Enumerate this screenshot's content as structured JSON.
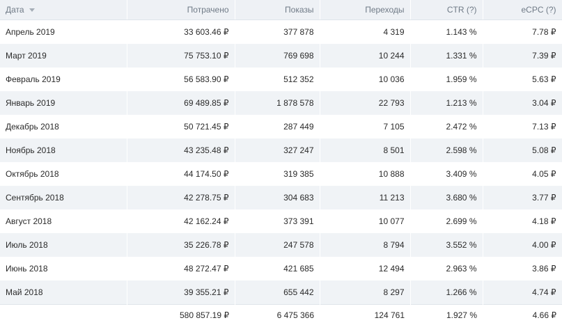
{
  "columns": {
    "date": "Дата",
    "spent": "Потрачено",
    "shows": "Показы",
    "clicks": "Переходы",
    "ctr": "CTR (?)",
    "ecpc": "eCPC (?)"
  },
  "rows": [
    {
      "date": "Апрель 2019",
      "spent": "33 603.46 ₽",
      "shows": "377 878",
      "clicks": "4 319",
      "ctr": "1.143 %",
      "ecpc": "7.78 ₽"
    },
    {
      "date": "Март 2019",
      "spent": "75 753.10 ₽",
      "shows": "769 698",
      "clicks": "10 244",
      "ctr": "1.331 %",
      "ecpc": "7.39 ₽"
    },
    {
      "date": "Февраль 2019",
      "spent": "56 583.90 ₽",
      "shows": "512 352",
      "clicks": "10 036",
      "ctr": "1.959 %",
      "ecpc": "5.63 ₽"
    },
    {
      "date": "Январь 2019",
      "spent": "69 489.85 ₽",
      "shows": "1 878 578",
      "clicks": "22 793",
      "ctr": "1.213 %",
      "ecpc": "3.04 ₽"
    },
    {
      "date": "Декабрь 2018",
      "spent": "50 721.45 ₽",
      "shows": "287 449",
      "clicks": "7 105",
      "ctr": "2.472 %",
      "ecpc": "7.13 ₽"
    },
    {
      "date": "Ноябрь 2018",
      "spent": "43 235.48 ₽",
      "shows": "327 247",
      "clicks": "8 501",
      "ctr": "2.598 %",
      "ecpc": "5.08 ₽"
    },
    {
      "date": "Октябрь 2018",
      "spent": "44 174.50 ₽",
      "shows": "319 385",
      "clicks": "10 888",
      "ctr": "3.409 %",
      "ecpc": "4.05 ₽"
    },
    {
      "date": "Сентябрь 2018",
      "spent": "42 278.75 ₽",
      "shows": "304 683",
      "clicks": "11 213",
      "ctr": "3.680 %",
      "ecpc": "3.77 ₽"
    },
    {
      "date": "Август 2018",
      "spent": "42 162.24 ₽",
      "shows": "373 391",
      "clicks": "10 077",
      "ctr": "2.699 %",
      "ecpc": "4.18 ₽"
    },
    {
      "date": "Июль 2018",
      "spent": "35 226.78 ₽",
      "shows": "247 578",
      "clicks": "8 794",
      "ctr": "3.552 %",
      "ecpc": "4.00 ₽"
    },
    {
      "date": "Июнь 2018",
      "spent": "48 272.47 ₽",
      "shows": "421 685",
      "clicks": "12 494",
      "ctr": "2.963 %",
      "ecpc": "3.86 ₽"
    },
    {
      "date": "Май 2018",
      "spent": "39 355.21 ₽",
      "shows": "655 442",
      "clicks": "8 297",
      "ctr": "1.266 %",
      "ecpc": "4.74 ₽"
    }
  ],
  "totals": {
    "date": "",
    "spent": "580 857.19 ₽",
    "shows": "6 475 366",
    "clicks": "124 761",
    "ctr": "1.927 %",
    "ecpc": "4.66 ₽"
  },
  "sort_icon": "chevron-down-icon",
  "colors": {
    "header_bg": "#eef1f5",
    "header_text": "#6f7a86",
    "stripe_bg": "#f0f3f6"
  }
}
